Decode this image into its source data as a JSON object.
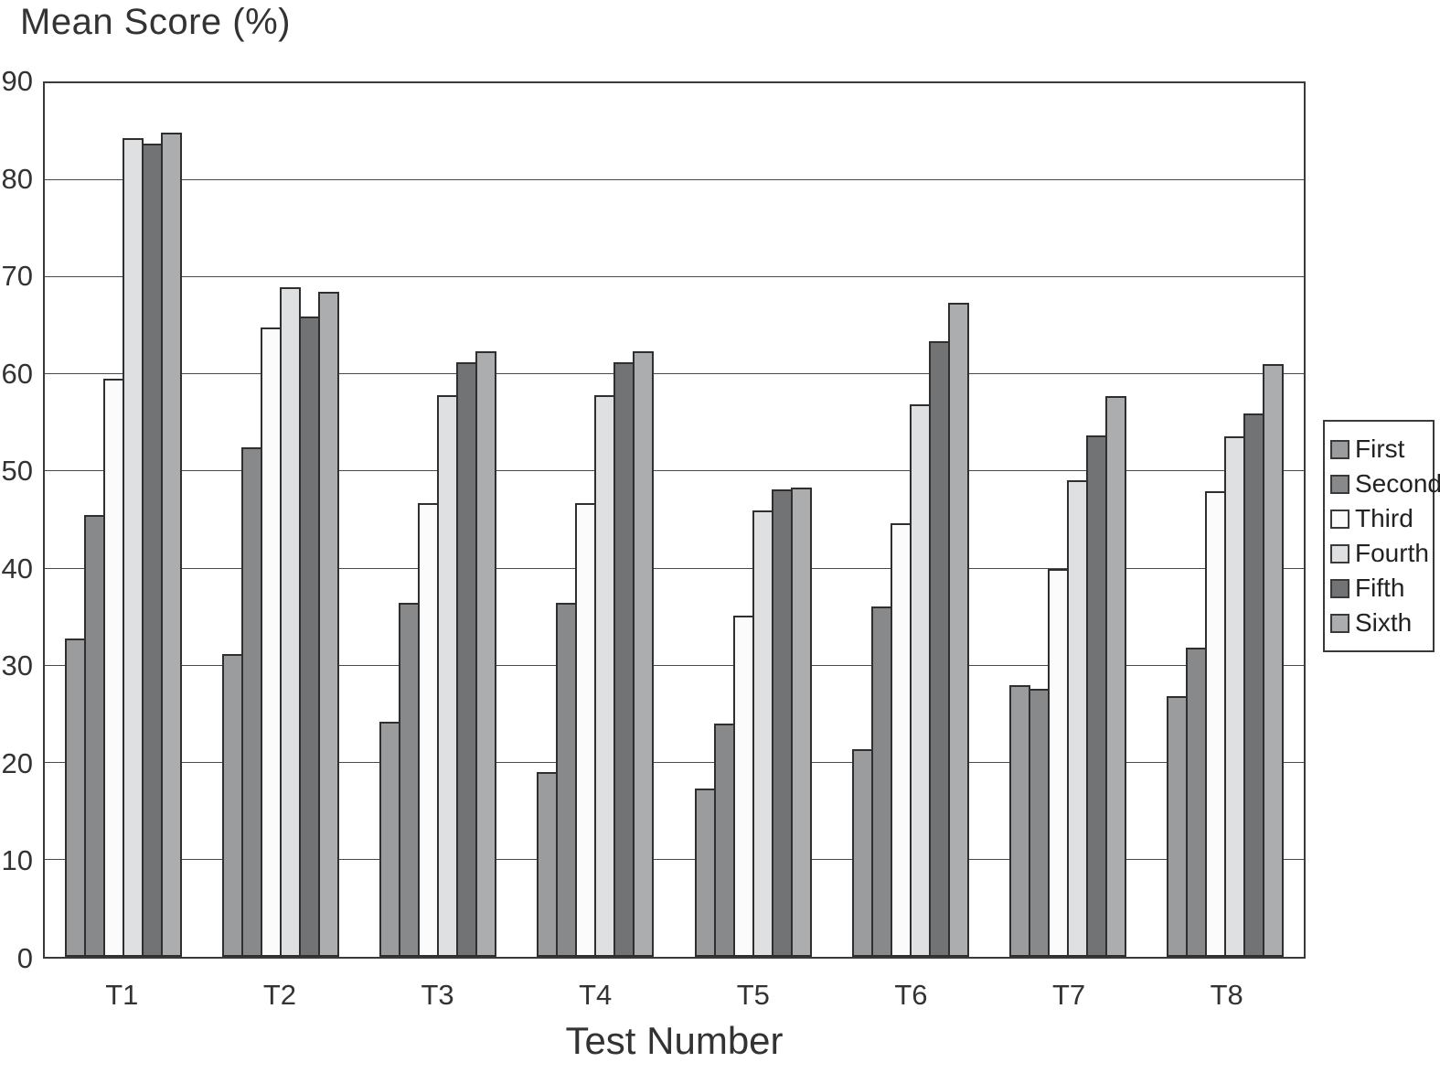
{
  "chart_data": {
    "type": "bar",
    "title": "Mean Score (%)",
    "xlabel": "Test Number",
    "ylabel": "Mean Score (%)",
    "ylim": [
      0,
      90
    ],
    "yticks": [
      0,
      10,
      20,
      30,
      40,
      50,
      60,
      70,
      80,
      90
    ],
    "grid": "horizontal",
    "legend_position": "right",
    "categories": [
      "T1",
      "T2",
      "T3",
      "T4",
      "T5",
      "T6",
      "T7",
      "T8"
    ],
    "series": [
      {
        "name": "First",
        "color": "#9a9c9e",
        "values": [
          32.8,
          31.2,
          24.2,
          19.0,
          17.3,
          21.4,
          28.0,
          26.9
        ]
      },
      {
        "name": "Second",
        "color": "#87898b",
        "values": [
          45.5,
          52.5,
          36.5,
          36.5,
          24.0,
          36.1,
          27.6,
          31.9
        ]
      },
      {
        "name": "Third",
        "color": "#fbfbfb",
        "values": [
          59.6,
          64.8,
          46.7,
          46.7,
          35.2,
          44.7,
          40.0,
          48.0
        ]
      },
      {
        "name": "Fourth",
        "color": "#dfe0e2",
        "values": [
          84.3,
          69.0,
          57.9,
          57.9,
          46.0,
          56.9,
          49.1,
          53.6
        ]
      },
      {
        "name": "Fifth",
        "color": "#717375",
        "values": [
          83.8,
          66.0,
          61.3,
          61.3,
          48.2,
          63.4,
          53.7,
          56.0
        ]
      },
      {
        "name": "Sixth",
        "color": "#abadaf",
        "values": [
          84.9,
          68.5,
          62.4,
          62.4,
          48.3,
          67.4,
          57.8,
          61.1
        ]
      }
    ],
    "bar_outline_color": "#2f2f2f",
    "gridline_color": "#4a4a4a"
  }
}
